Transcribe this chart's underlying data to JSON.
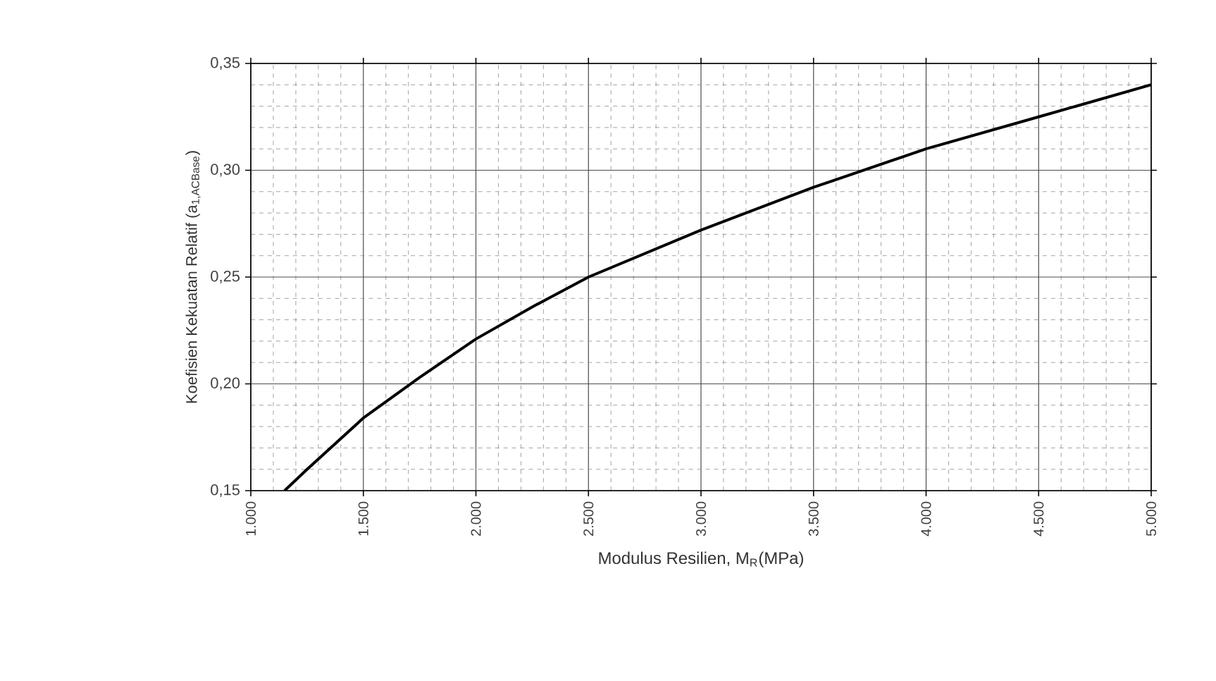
{
  "chart_data": {
    "type": "line",
    "xlabel": "Modulus Resilien, M$_{R}$(MPa)",
    "ylabel": "Koefisien Kekuatan Relatif (a$_{1,ACBase}$)",
    "x": [
      1150,
      1250,
      1500,
      1750,
      2000,
      2250,
      2500,
      3000,
      3500,
      4000,
      4500,
      5000
    ],
    "series": [
      {
        "color": "#000000",
        "values": [
          0.15,
          0.16,
          0.184,
          0.203,
          0.221,
          0.236,
          0.25,
          0.272,
          0.292,
          0.31,
          0.325,
          0.34
        ]
      }
    ],
    "xlim": [
      1000,
      5000
    ],
    "ylim": [
      0.15,
      0.35
    ],
    "xticks": [
      {
        "value": 1000,
        "label": "1.000"
      },
      {
        "value": 1500,
        "label": "1.500"
      },
      {
        "value": 2000,
        "label": "2.000"
      },
      {
        "value": 2500,
        "label": "2.500"
      },
      {
        "value": 3000,
        "label": "3.000"
      },
      {
        "value": 3500,
        "label": "3.500"
      },
      {
        "value": 4000,
        "label": "4.000"
      },
      {
        "value": 4500,
        "label": "4.500"
      },
      {
        "value": 5000,
        "label": "5.000"
      }
    ],
    "yticks": [
      {
        "value": 0.15,
        "label": "0,15"
      },
      {
        "value": 0.2,
        "label": "0,20"
      },
      {
        "value": 0.25,
        "label": "0,25"
      },
      {
        "value": 0.3,
        "label": "0,30"
      },
      {
        "value": 0.35,
        "label": "0,35"
      }
    ],
    "grid": true,
    "marker": "none",
    "line_style": "solid"
  }
}
